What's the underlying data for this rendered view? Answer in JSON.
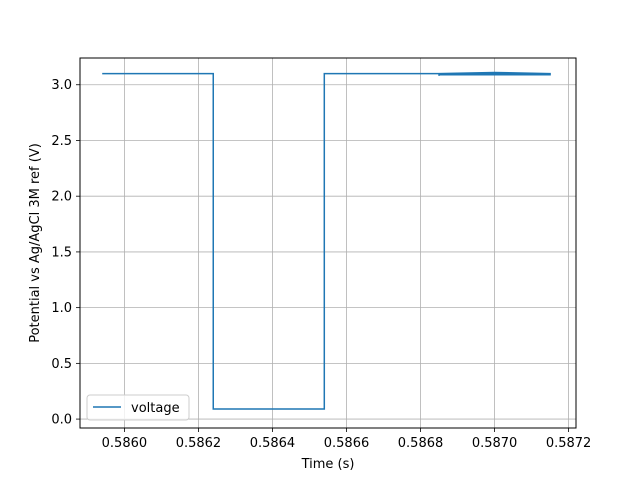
{
  "chart_data": {
    "type": "line",
    "xlabel": "Time (s)",
    "ylabel": "Potential vs Ag/AgCl 3M ref (V)",
    "xlim": [
      0.58588,
      0.58722
    ],
    "ylim": [
      -0.08,
      3.24
    ],
    "x_ticks": [
      0.586,
      0.5862,
      0.5864,
      0.5866,
      0.5868,
      0.587,
      0.5872
    ],
    "x_tick_labels": [
      "0.5860",
      "0.5862",
      "0.5864",
      "0.5866",
      "0.5868",
      "0.5870",
      "0.5872"
    ],
    "y_ticks": [
      0.0,
      0.5,
      1.0,
      1.5,
      2.0,
      2.5,
      3.0
    ],
    "y_tick_labels": [
      "0.0",
      "0.5",
      "1.0",
      "1.5",
      "2.0",
      "2.5",
      "3.0"
    ],
    "grid": true,
    "legend_position": "lower-left",
    "series": [
      {
        "name": "voltage",
        "color": "#1f77b4",
        "x": [
          0.58594,
          0.58595,
          0.58624,
          0.58624,
          0.58654,
          0.58654,
          0.58685,
          0.58685,
          0.58685,
          0.58715,
          0.58715,
          0.58685,
          0.58685,
          0.587,
          0.58715
        ],
        "y": [
          3.1,
          3.1,
          3.1,
          0.09,
          0.09,
          3.1,
          3.1,
          3.08,
          3.1,
          3.1,
          3.09,
          3.09,
          3.1,
          3.11,
          3.1
        ]
      }
    ]
  }
}
